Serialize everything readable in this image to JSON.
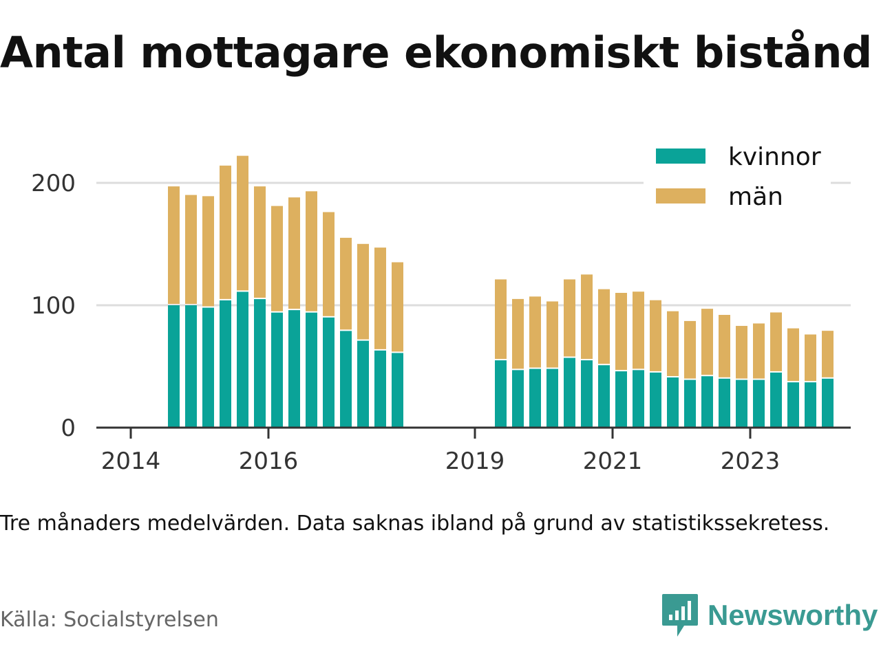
{
  "title": "Antal mottagare ekonomiskt bistånd",
  "note": "Tre månaders medelvärden. Data saknas ibland på grund av statistikssekretess.",
  "source": "Källa: Socialstyrelsen",
  "brand": {
    "name": "Newsworthy",
    "icon": "newsworthy-logo-icon",
    "color": "#3a9a92"
  },
  "colors": {
    "kvinnor": "#0aa398",
    "man": "#ddb05f",
    "grid": "#dddddd",
    "axis": "#333333"
  },
  "chart_data": {
    "type": "bar",
    "stacked": true,
    "grid": true,
    "legend_position": "top-right",
    "ylim": [
      0,
      220
    ],
    "yticks": [
      "0",
      "100",
      "200"
    ],
    "xticks": [
      "2014",
      "2016",
      "2019",
      "2021",
      "2023"
    ],
    "series": [
      {
        "name": "kvinnor",
        "values": [
          100,
          100,
          98,
          104,
          111,
          105,
          94,
          96,
          94,
          90,
          79,
          71,
          63,
          61,
          55,
          47,
          48,
          48,
          57,
          55,
          51,
          46,
          47,
          45,
          41,
          39,
          42,
          40,
          39,
          39,
          45,
          37,
          37,
          40
        ]
      },
      {
        "name": "män",
        "values": [
          96,
          89,
          90,
          109,
          110,
          91,
          86,
          91,
          98,
          85,
          75,
          78,
          83,
          73,
          65,
          57,
          58,
          54,
          63,
          69,
          61,
          63,
          63,
          58,
          53,
          47,
          54,
          51,
          43,
          45,
          48,
          43,
          38,
          38
        ]
      }
    ],
    "periods": [
      "2014 Q2",
      "2014 Q3",
      "2014 Q4",
      "2015 Q1",
      "2015 Q2",
      "2015 Q3",
      "2015 Q4",
      "2016 Q1",
      "2016 Q2",
      "2016 Q3",
      "2016 Q4",
      "2017 Q1",
      "2017 Q2",
      "2017 Q3",
      "2019 Q1",
      "2019 Q2",
      "2019 Q3",
      "2019 Q4",
      "2020 Q1",
      "2020 Q2",
      "2020 Q3",
      "2020 Q4",
      "2021 Q1",
      "2021 Q2",
      "2021 Q3",
      "2021 Q4",
      "2022 Q1",
      "2022 Q2",
      "2022 Q3",
      "2022 Q4",
      "2023 Q1",
      "2023 Q2",
      "2023 Q3",
      "2023 Q4"
    ]
  }
}
